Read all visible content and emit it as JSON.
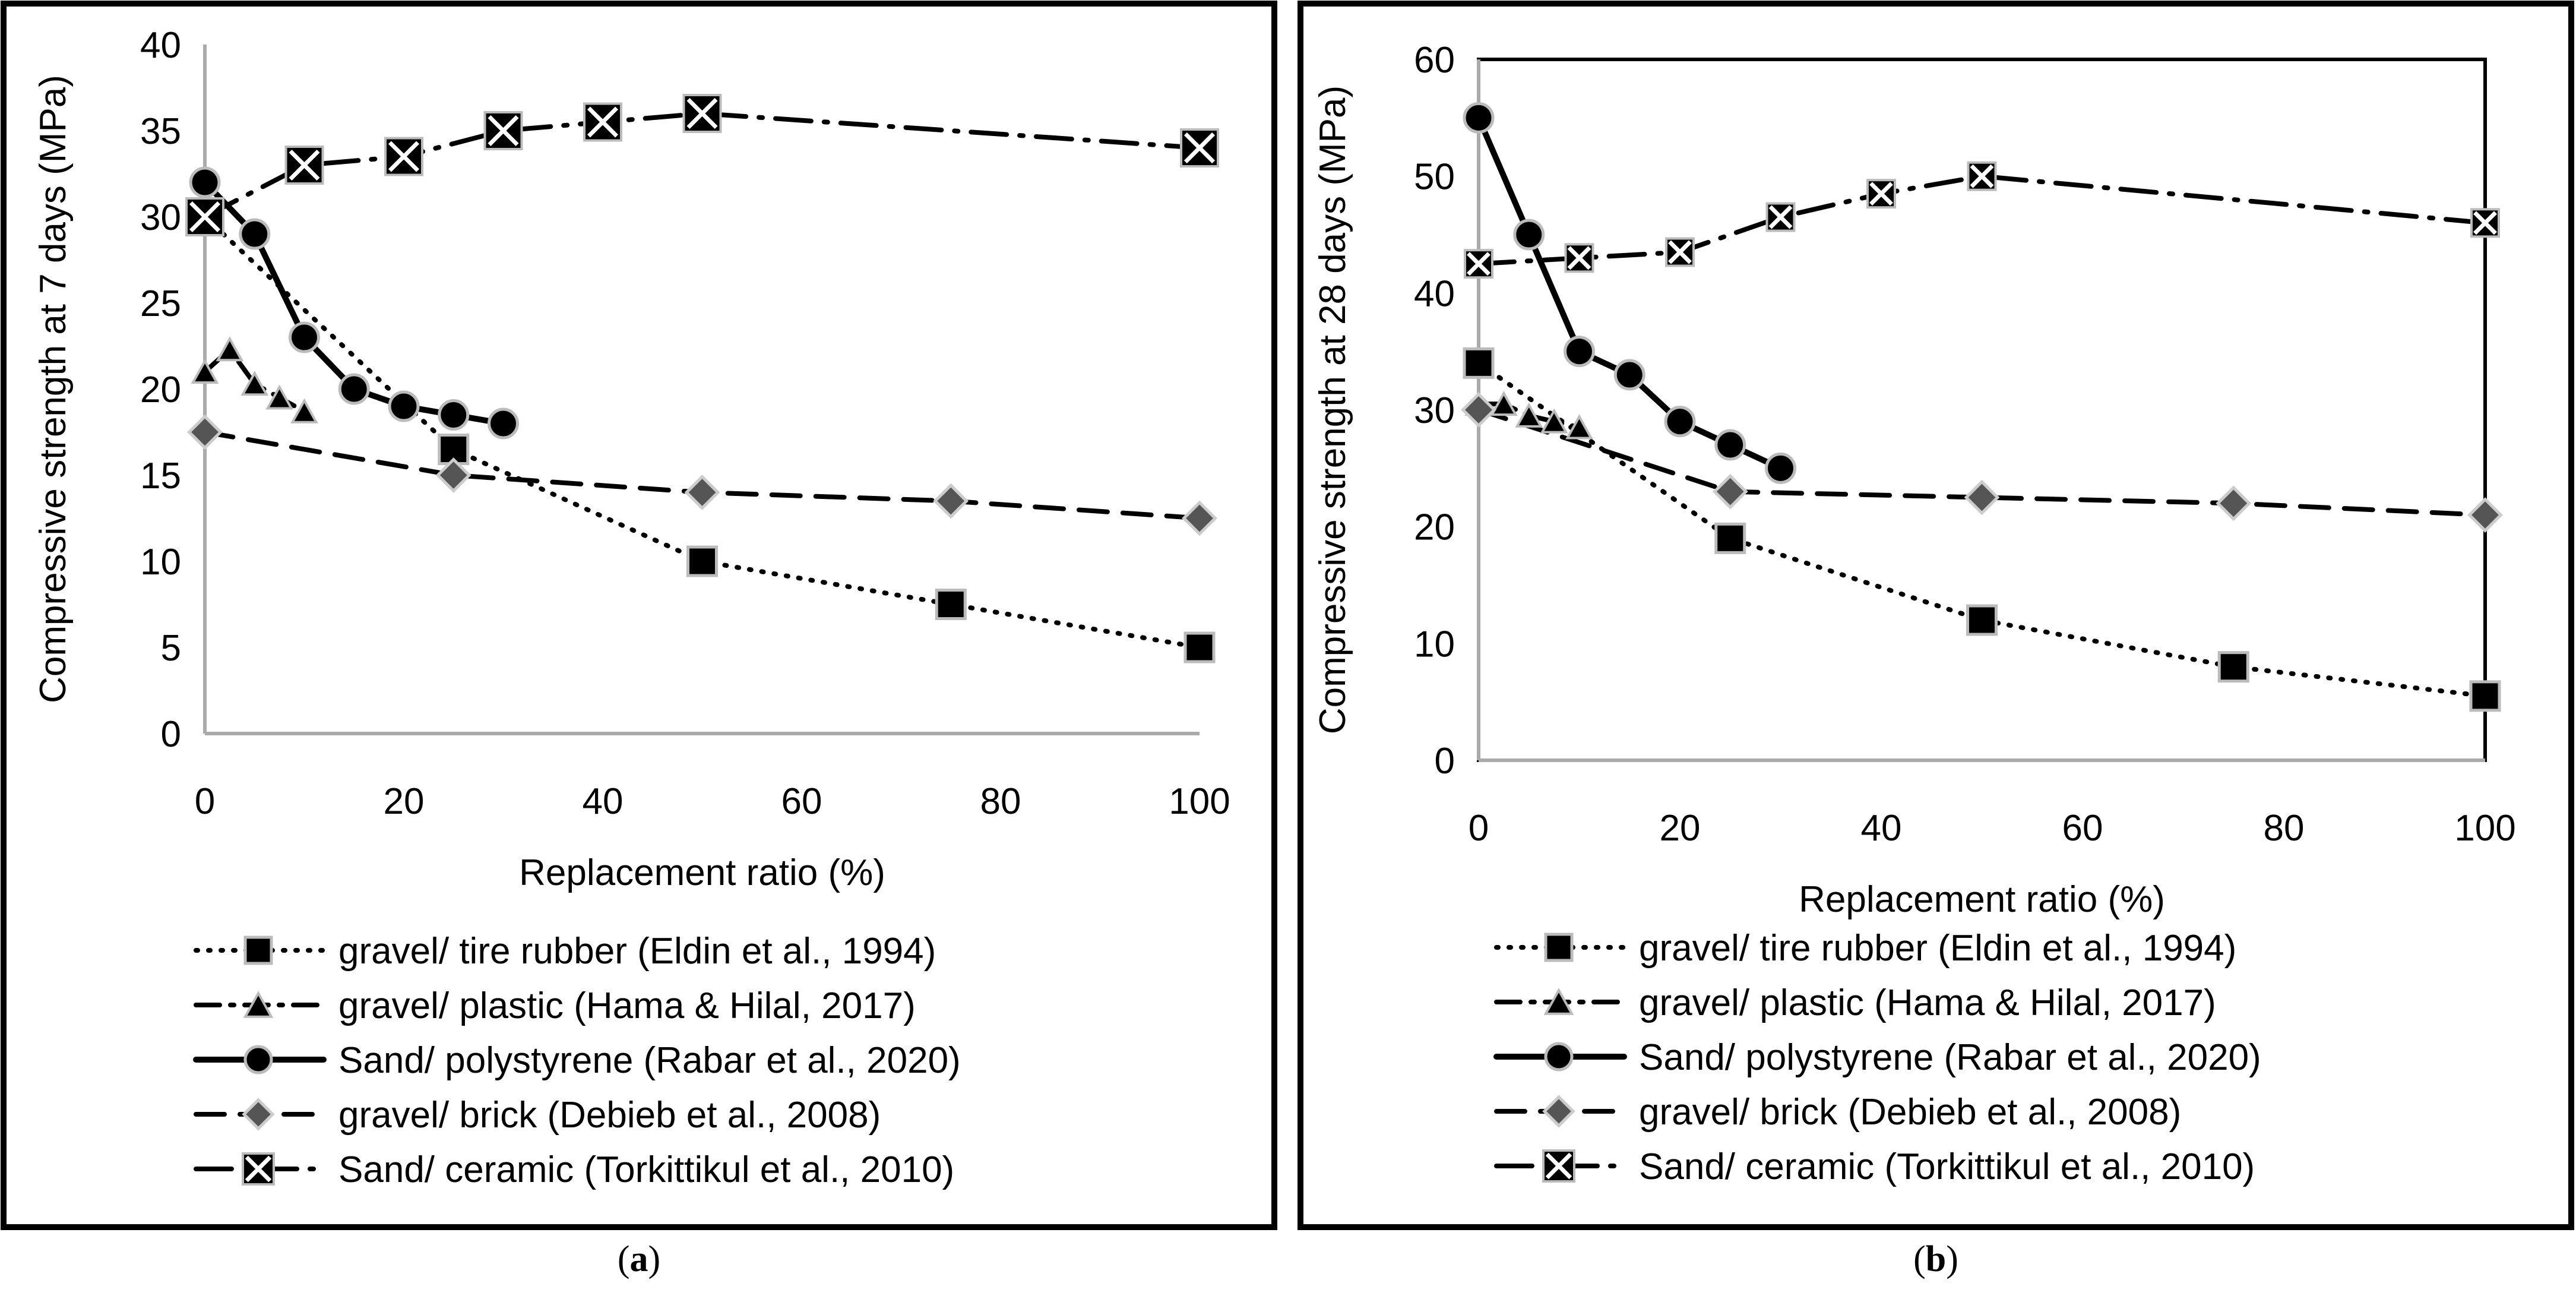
{
  "panels": [
    {
      "label": "a",
      "chart_data": {
        "type": "line",
        "xlabel": "Replacement ratio (%)",
        "ylabel": "Compressive strength at 7 days (MPa)",
        "xlim": [
          0,
          100
        ],
        "ylim": [
          0,
          40
        ],
        "xticks": [
          0,
          20,
          40,
          60,
          80,
          100
        ],
        "yticks": [
          0,
          5,
          10,
          15,
          20,
          25,
          30,
          35,
          40
        ],
        "grid": false,
        "legend_position": "bottom",
        "series": [
          {
            "name": "gravel/ tire rubber (Eldin et al., 1994)",
            "marker": "square",
            "line": "dotted",
            "x": [
              0,
              25,
              50,
              75,
              100
            ],
            "y": [
              30,
              16.5,
              10,
              7.5,
              5
            ]
          },
          {
            "name": "gravel/ plastic (Hama & Hilal, 2017)",
            "marker": "triangle",
            "line": "dashdot",
            "x": [
              0,
              2.5,
              5,
              7.5,
              10
            ],
            "y": [
              21,
              22.3,
              20.3,
              19.5,
              18.7
            ]
          },
          {
            "name": "Sand/ polystyrene (Rabar et al., 2020)",
            "marker": "circle",
            "line": "solid",
            "x": [
              0,
              5,
              10,
              15,
              20,
              25,
              30
            ],
            "y": [
              32,
              29,
              23,
              20,
              19,
              18.5,
              18
            ]
          },
          {
            "name": "gravel/ brick (Debieb et al., 2008)",
            "marker": "diamond",
            "line": "dashed",
            "x": [
              0,
              25,
              50,
              75,
              100
            ],
            "y": [
              17.5,
              15,
              14,
              13.5,
              12.5
            ]
          },
          {
            "name": "Sand/ ceramic (Torkittikul et al., 2010)",
            "marker": "xsquare",
            "line": "longdashdot",
            "x": [
              0,
              10,
              20,
              30,
              40,
              50,
              100
            ],
            "y": [
              30,
              33,
              33.5,
              35,
              35.5,
              36,
              34
            ]
          }
        ]
      }
    },
    {
      "label": "b",
      "chart_data": {
        "type": "line",
        "xlabel": "Replacement ratio (%)",
        "ylabel": "Compressive strength at 28 days (MPa)",
        "xlim": [
          0,
          100
        ],
        "ylim": [
          0,
          60
        ],
        "xticks": [
          0,
          20,
          40,
          60,
          80,
          100
        ],
        "yticks": [
          0,
          10,
          20,
          30,
          40,
          50,
          60
        ],
        "grid": false,
        "legend_position": "bottom",
        "series": [
          {
            "name": "gravel/ tire rubber (Eldin et al., 1994)",
            "marker": "square",
            "line": "dotted",
            "x": [
              0,
              25,
              50,
              75,
              100
            ],
            "y": [
              34,
              19,
              12,
              8,
              5.5
            ]
          },
          {
            "name": "gravel/ plastic (Hama & Hilal, 2017)",
            "marker": "triangle",
            "line": "dashdot",
            "x": [
              0,
              2.5,
              5,
              7.5,
              10
            ],
            "y": [
              30.5,
              30.5,
              29.5,
              29,
              28.5
            ]
          },
          {
            "name": "Sand/ polystyrene (Rabar et al., 2020)",
            "marker": "circle",
            "line": "solid",
            "x": [
              0,
              5,
              10,
              15,
              20,
              25,
              30
            ],
            "y": [
              55,
              45,
              35,
              33,
              29,
              27,
              25
            ]
          },
          {
            "name": "gravel/ brick (Debieb et al., 2008)",
            "marker": "diamond",
            "line": "dashed",
            "x": [
              0,
              25,
              50,
              75,
              100
            ],
            "y": [
              30,
              23,
              22.5,
              22,
              21
            ]
          },
          {
            "name": "Sand/ ceramic (Torkittikul et al., 2010)",
            "marker": "xsquare",
            "line": "longdashdot",
            "x": [
              0,
              10,
              20,
              30,
              40,
              50,
              100
            ],
            "y": [
              42.5,
              43,
              43.5,
              46.5,
              48.5,
              50,
              46
            ]
          }
        ]
      }
    }
  ]
}
